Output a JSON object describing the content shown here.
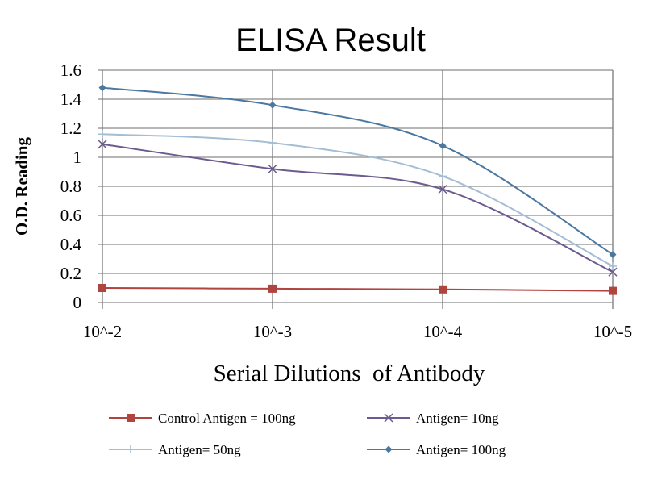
{
  "chart_data": {
    "type": "line",
    "title": "ELISA Result",
    "xlabel": "Serial Dilutions  of Antibody",
    "ylabel": "O.D. Reading",
    "categories": [
      "10^-2",
      "10^-3",
      "10^-4",
      "10^-5"
    ],
    "ylim": [
      0,
      1.6
    ],
    "yticks": [
      "0",
      "0.2",
      "0.4",
      "0.6",
      "0.8",
      "1",
      "1.2",
      "1.4",
      "1.6"
    ],
    "ytick_values": [
      0,
      0.2,
      0.4,
      0.6,
      0.8,
      1.0,
      1.2,
      1.4,
      1.6
    ],
    "grid": true,
    "legend_position": "bottom",
    "series": [
      {
        "name": "Control Antigen = 100ng",
        "values": [
          0.1,
          0.095,
          0.09,
          0.08
        ],
        "color": "#b0443f",
        "marker": "square"
      },
      {
        "name": "Antigen= 10ng",
        "values": [
          1.09,
          0.92,
          0.78,
          0.21
        ],
        "color": "#6b5b8e",
        "marker": "x"
      },
      {
        "name": "Antigen= 50ng",
        "values": [
          1.16,
          1.1,
          0.87,
          0.25
        ],
        "color": "#a3bdd4",
        "marker": "plus"
      },
      {
        "name": "Antigen= 100ng",
        "values": [
          1.48,
          1.36,
          1.08,
          0.33
        ],
        "color": "#4a78a0",
        "marker": "diamond"
      }
    ]
  }
}
